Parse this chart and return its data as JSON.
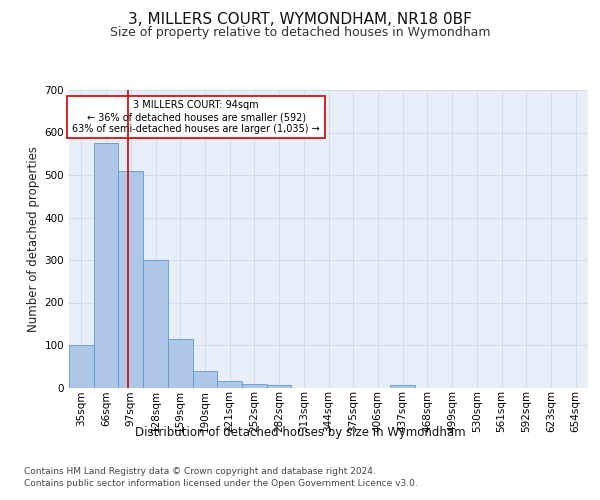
{
  "title": "3, MILLERS COURT, WYMONDHAM, NR18 0BF",
  "subtitle": "Size of property relative to detached houses in Wymondham",
  "xlabel": "Distribution of detached houses by size in Wymondham",
  "ylabel": "Number of detached properties",
  "footnote1": "Contains HM Land Registry data © Crown copyright and database right 2024.",
  "footnote2": "Contains public sector information licensed under the Open Government Licence v3.0.",
  "bin_labels": [
    "35sqm",
    "66sqm",
    "97sqm",
    "128sqm",
    "159sqm",
    "190sqm",
    "221sqm",
    "252sqm",
    "282sqm",
    "313sqm",
    "344sqm",
    "375sqm",
    "406sqm",
    "437sqm",
    "468sqm",
    "499sqm",
    "530sqm",
    "561sqm",
    "592sqm",
    "623sqm",
    "654sqm"
  ],
  "bar_values": [
    100,
    575,
    510,
    300,
    115,
    38,
    15,
    9,
    6,
    0,
    0,
    0,
    0,
    7,
    0,
    0,
    0,
    0,
    0,
    0,
    0
  ],
  "bar_color": "#aec6e8",
  "bar_edge_color": "#5b9bd5",
  "property_line_x": 1.88,
  "property_line_color": "#cc0000",
  "annotation_text": "3 MILLERS COURT: 94sqm\n← 36% of detached houses are smaller (592)\n63% of semi-detached houses are larger (1,035) →",
  "annotation_box_color": "#ffffff",
  "annotation_box_edge": "#cc0000",
  "ylim": [
    0,
    700
  ],
  "yticks": [
    0,
    100,
    200,
    300,
    400,
    500,
    600,
    700
  ],
  "grid_color": "#d0d8e8",
  "bg_color": "#e8eef8",
  "fig_bg_color": "#ffffff",
  "title_fontsize": 11,
  "subtitle_fontsize": 9,
  "axis_label_fontsize": 8.5,
  "tick_fontsize": 7.5,
  "annotation_fontsize": 7,
  "footnote_fontsize": 6.5
}
